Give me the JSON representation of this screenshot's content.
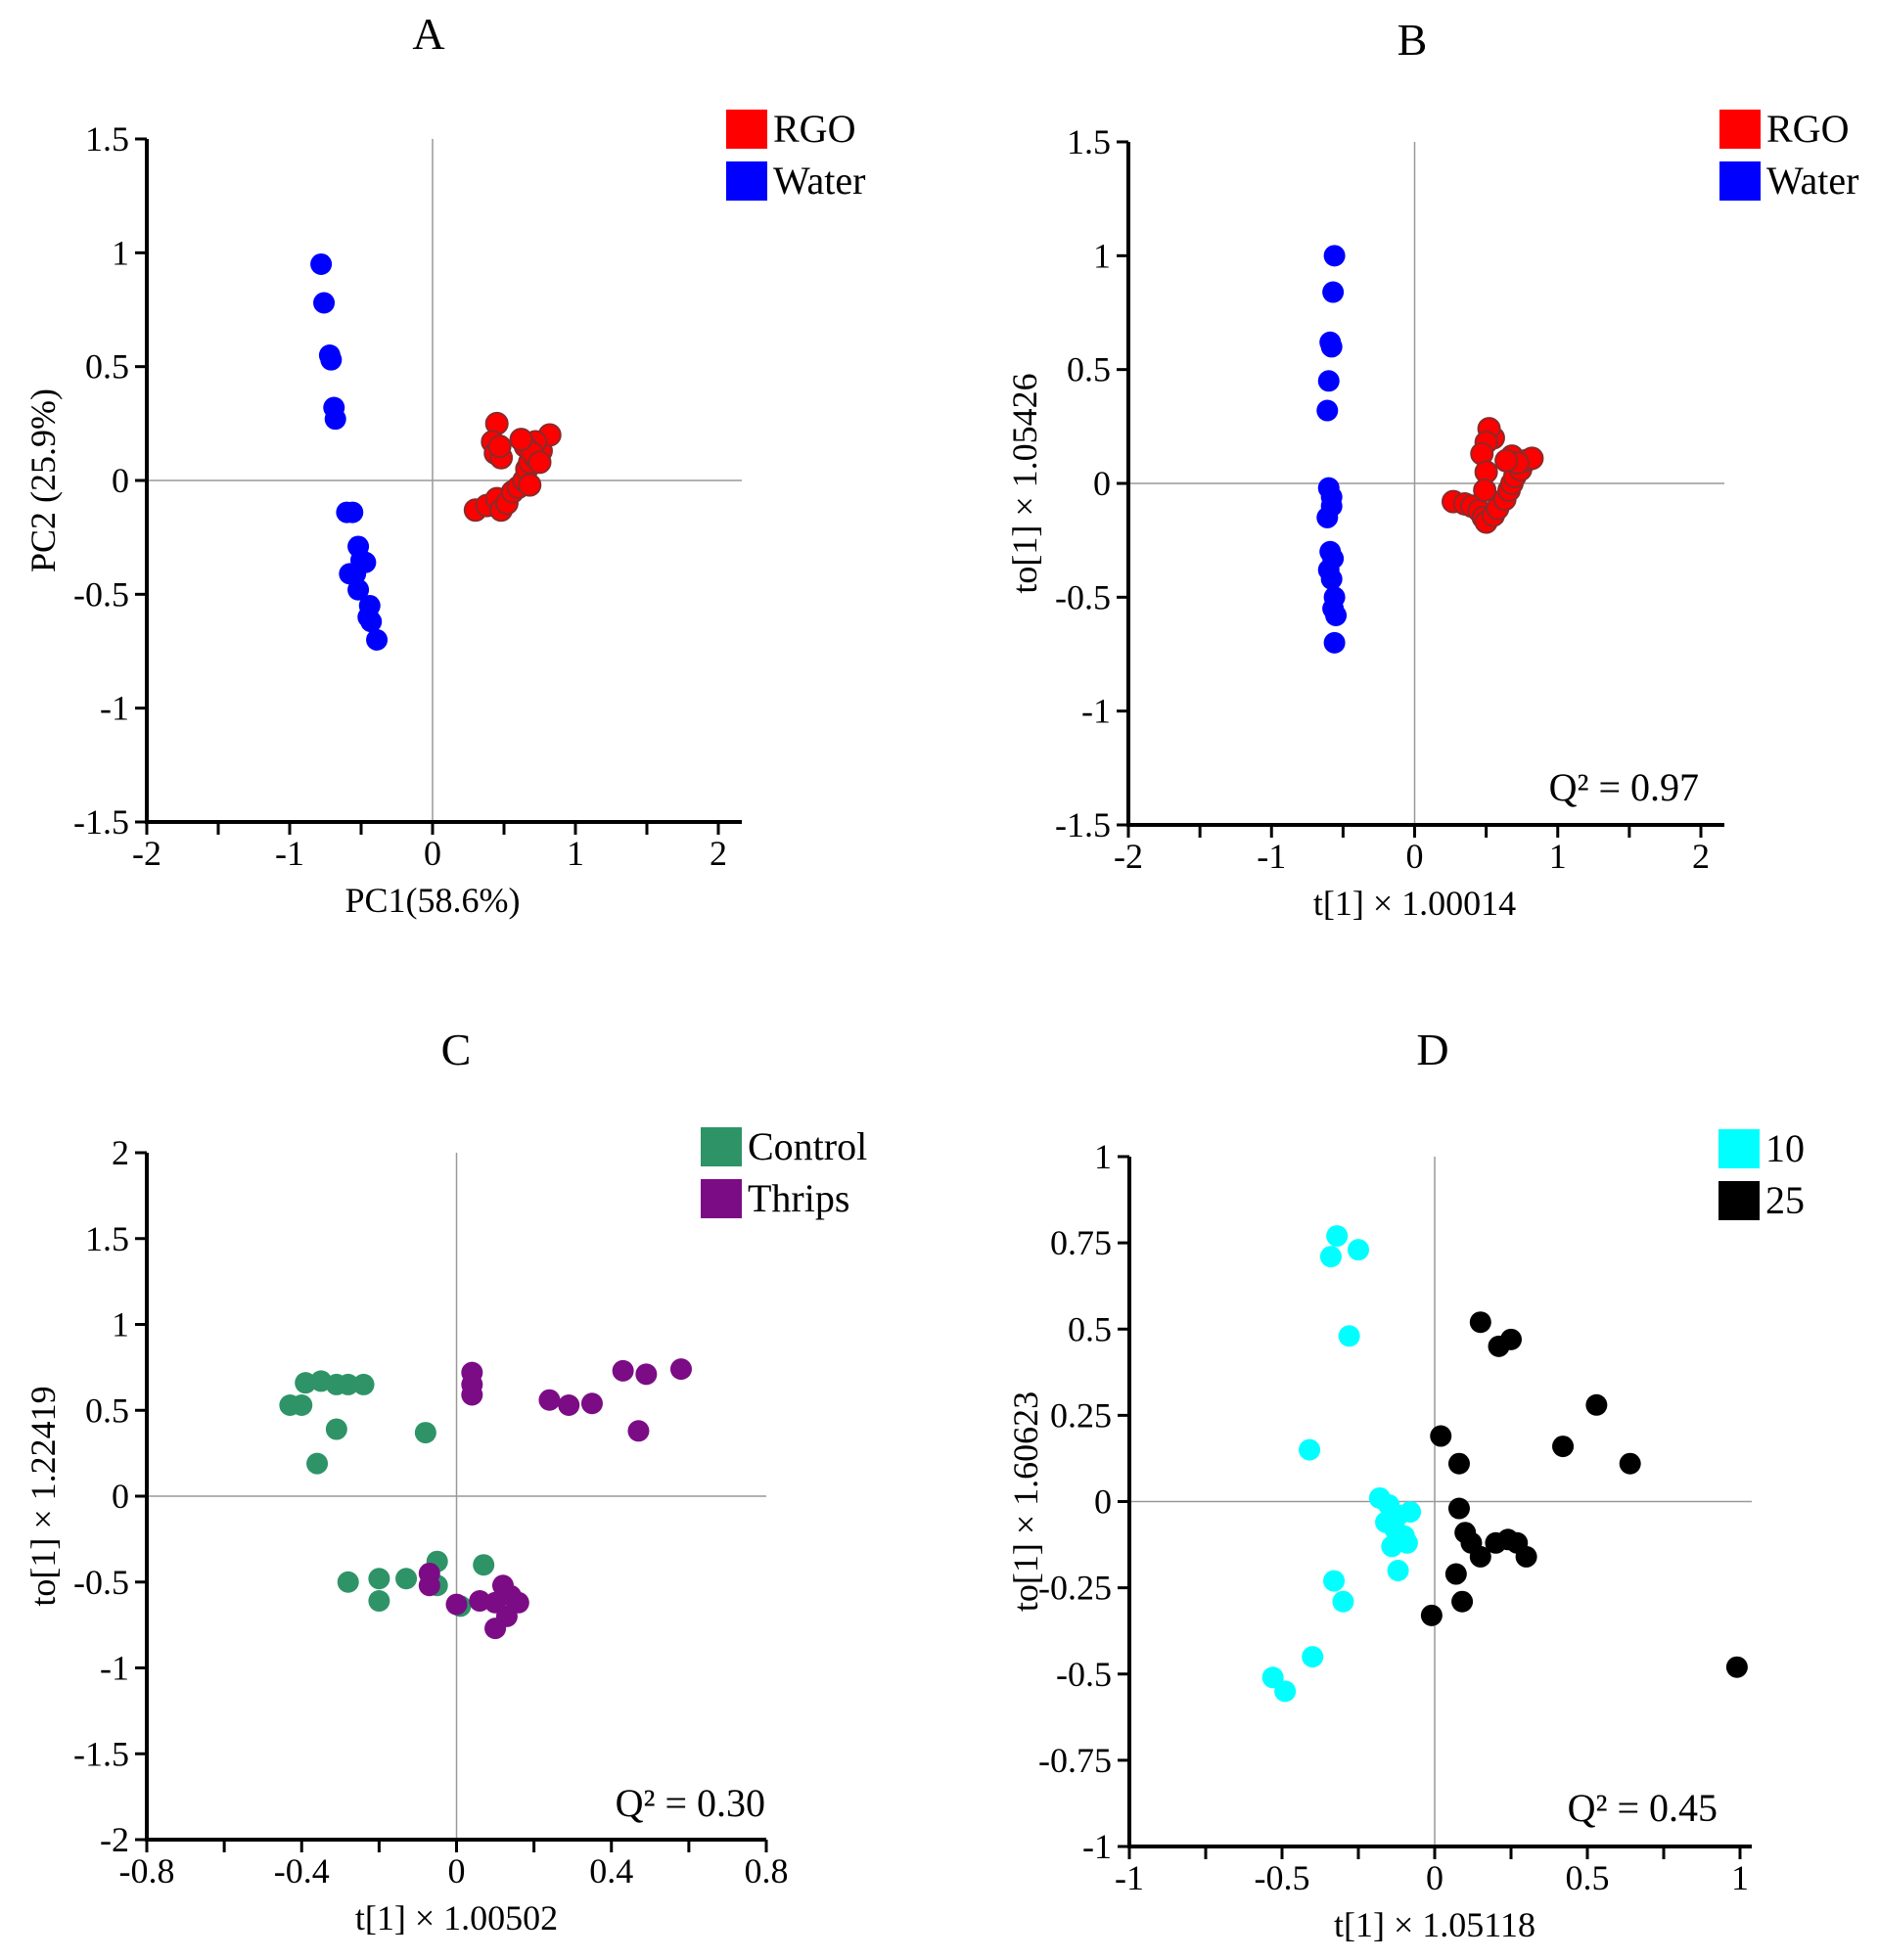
{
  "figure": {
    "description_panels": [
      "A",
      "B",
      "C",
      "D"
    ]
  },
  "chart_data": [
    {
      "type": "scatter",
      "panel_label": "A",
      "title": "",
      "xlabel": "PC1(58.6%)",
      "ylabel": "PC2 (25.9%)",
      "xlim": [
        -2,
        2
      ],
      "ylim": [
        -1.5,
        1.5
      ],
      "xticks": [
        -2,
        -1.5,
        -1,
        -0.5,
        0,
        0.5,
        1,
        1.5,
        2
      ],
      "yticks": [
        -1.5,
        -1,
        -0.5,
        0,
        0.5,
        1,
        1.5
      ],
      "xtick_labels": [
        "-2",
        "",
        "-1",
        "",
        "0",
        "",
        "1",
        "",
        "2"
      ],
      "ytick_labels": [
        "-1.5",
        "-1",
        "-0.5",
        "0",
        "0.5",
        "1",
        "1.5"
      ],
      "annotation": "",
      "legend": {
        "placement": "top-right",
        "entries": [
          {
            "label": "RGO",
            "color": "#ff0000"
          },
          {
            "label": "Water",
            "color": "#0000ff"
          }
        ]
      },
      "series": [
        {
          "name": "RGO",
          "color": "#ff0000",
          "outlined": true,
          "points": [
            [
              0.3,
              -0.13
            ],
            [
              0.38,
              -0.11
            ],
            [
              0.45,
              -0.08
            ],
            [
              0.48,
              -0.13
            ],
            [
              0.52,
              -0.1
            ],
            [
              0.56,
              -0.05
            ],
            [
              0.6,
              -0.03
            ],
            [
              0.64,
              0.0
            ],
            [
              0.66,
              0.05
            ],
            [
              0.68,
              0.08
            ],
            [
              0.72,
              0.1
            ],
            [
              0.76,
              0.13
            ],
            [
              0.82,
              0.2
            ],
            [
              0.72,
              0.17
            ],
            [
              0.65,
              0.15
            ],
            [
              0.7,
              0.12
            ],
            [
              0.75,
              0.08
            ],
            [
              0.45,
              0.25
            ],
            [
              0.42,
              0.17
            ],
            [
              0.44,
              0.12
            ],
            [
              0.48,
              0.1
            ],
            [
              0.47,
              0.15
            ],
            [
              0.68,
              -0.02
            ],
            [
              0.62,
              0.18
            ]
          ]
        },
        {
          "name": "Water",
          "color": "#0000ff",
          "outlined": false,
          "points": [
            [
              -0.78,
              0.95
            ],
            [
              -0.76,
              0.78
            ],
            [
              -0.72,
              0.55
            ],
            [
              -0.71,
              0.53
            ],
            [
              -0.69,
              0.32
            ],
            [
              -0.68,
              0.27
            ],
            [
              -0.6,
              -0.14
            ],
            [
              -0.56,
              -0.14
            ],
            [
              -0.52,
              -0.29
            ],
            [
              -0.5,
              -0.35
            ],
            [
              -0.47,
              -0.36
            ],
            [
              -0.58,
              -0.41
            ],
            [
              -0.54,
              -0.41
            ],
            [
              -0.52,
              -0.48
            ],
            [
              -0.44,
              -0.55
            ],
            [
              -0.45,
              -0.6
            ],
            [
              -0.43,
              -0.62
            ],
            [
              -0.39,
              -0.7
            ]
          ]
        }
      ]
    },
    {
      "type": "scatter",
      "panel_label": "B",
      "title": "",
      "xlabel": "t[1] × 1.00014",
      "ylabel": "to[1] × 1.05426",
      "xlim": [
        -2,
        2
      ],
      "ylim": [
        -1.5,
        1.5
      ],
      "xticks": [
        -2,
        -1.5,
        -1,
        -0.5,
        0,
        0.5,
        1,
        1.5,
        2
      ],
      "yticks": [
        -1.5,
        -1,
        -0.5,
        0,
        0.5,
        1,
        1.5
      ],
      "xtick_labels": [
        "-2",
        "",
        "-1",
        "",
        "0",
        "",
        "1",
        "",
        "2"
      ],
      "ytick_labels": [
        "-1.5",
        "-1",
        "-0.5",
        "0",
        "0.5",
        "1",
        "1.5"
      ],
      "annotation": "Q² = 0.97",
      "legend": {
        "placement": "top-right",
        "entries": [
          {
            "label": "RGO",
            "color": "#ff0000"
          },
          {
            "label": "Water",
            "color": "#0000ff"
          }
        ]
      },
      "series": [
        {
          "name": "RGO",
          "color": "#ff0000",
          "outlined": true,
          "points": [
            [
              0.27,
              -0.08
            ],
            [
              0.35,
              -0.09
            ],
            [
              0.4,
              -0.1
            ],
            [
              0.45,
              -0.12
            ],
            [
              0.48,
              -0.15
            ],
            [
              0.5,
              -0.17
            ],
            [
              0.55,
              -0.14
            ],
            [
              0.58,
              -0.11
            ],
            [
              0.63,
              -0.07
            ],
            [
              0.66,
              -0.03
            ],
            [
              0.68,
              0.0
            ],
            [
              0.7,
              0.03
            ],
            [
              0.74,
              0.06
            ],
            [
              0.78,
              0.1
            ],
            [
              0.82,
              0.11
            ],
            [
              0.68,
              0.12
            ],
            [
              0.72,
              0.09
            ],
            [
              0.55,
              0.2
            ],
            [
              0.52,
              0.24
            ],
            [
              0.5,
              0.18
            ],
            [
              0.47,
              0.13
            ],
            [
              0.5,
              0.05
            ],
            [
              0.49,
              -0.03
            ],
            [
              0.64,
              0.1
            ]
          ]
        },
        {
          "name": "Water",
          "color": "#0000ff",
          "outlined": false,
          "points": [
            [
              -0.56,
              1.0
            ],
            [
              -0.57,
              0.84
            ],
            [
              -0.59,
              0.62
            ],
            [
              -0.58,
              0.6
            ],
            [
              -0.6,
              0.45
            ],
            [
              -0.61,
              0.32
            ],
            [
              -0.6,
              -0.02
            ],
            [
              -0.58,
              -0.06
            ],
            [
              -0.61,
              -0.15
            ],
            [
              -0.58,
              -0.1
            ],
            [
              -0.59,
              -0.3
            ],
            [
              -0.57,
              -0.33
            ],
            [
              -0.6,
              -0.38
            ],
            [
              -0.58,
              -0.42
            ],
            [
              -0.56,
              -0.5
            ],
            [
              -0.57,
              -0.55
            ],
            [
              -0.55,
              -0.58
            ],
            [
              -0.56,
              -0.7
            ]
          ]
        }
      ]
    },
    {
      "type": "scatter",
      "panel_label": "C",
      "title": "",
      "xlabel": "t[1] × 1.00502",
      "ylabel": "to[1] × 1.22419",
      "xlim": [
        -0.8,
        0.8
      ],
      "ylim": [
        -2,
        2
      ],
      "xticks": [
        -0.8,
        -0.6,
        -0.4,
        -0.2,
        0,
        0.2,
        0.4,
        0.6,
        0.8
      ],
      "yticks": [
        -2,
        -1.5,
        -1,
        -0.5,
        0,
        0.5,
        1,
        1.5,
        2
      ],
      "xtick_labels": [
        "-0.8",
        "",
        "-0.4",
        "",
        "0",
        "",
        "0.4",
        "",
        "0.8"
      ],
      "ytick_labels": [
        "-2",
        "-1.5",
        "-1",
        "-0.5",
        "0",
        "0.5",
        "1",
        "1.5",
        "2"
      ],
      "annotation": "Q² = 0.30",
      "legend": {
        "placement": "top-right",
        "entries": [
          {
            "label": "Control",
            "color": "#2e9467"
          },
          {
            "label": "Thrips",
            "color": "#7b0c85"
          }
        ]
      },
      "series": [
        {
          "name": "Control",
          "color": "#2e9467",
          "outlined": false,
          "points": [
            [
              -0.43,
              0.53
            ],
            [
              -0.4,
              0.53
            ],
            [
              -0.39,
              0.66
            ],
            [
              -0.35,
              0.67
            ],
            [
              -0.31,
              0.65
            ],
            [
              -0.28,
              0.65
            ],
            [
              -0.24,
              0.65
            ],
            [
              -0.31,
              0.39
            ],
            [
              -0.36,
              0.19
            ],
            [
              -0.08,
              0.37
            ],
            [
              -0.28,
              -0.5
            ],
            [
              -0.2,
              -0.48
            ],
            [
              -0.2,
              -0.61
            ],
            [
              -0.13,
              -0.48
            ],
            [
              -0.05,
              -0.38
            ],
            [
              -0.05,
              -0.52
            ],
            [
              0.07,
              -0.4
            ],
            [
              0.01,
              -0.64
            ]
          ]
        },
        {
          "name": "Thrips",
          "color": "#7b0c85",
          "outlined": false,
          "points": [
            [
              0.04,
              0.72
            ],
            [
              0.04,
              0.65
            ],
            [
              0.04,
              0.59
            ],
            [
              0.24,
              0.56
            ],
            [
              0.29,
              0.53
            ],
            [
              0.35,
              0.54
            ],
            [
              0.43,
              0.73
            ],
            [
              0.49,
              0.71
            ],
            [
              0.58,
              0.74
            ],
            [
              0.47,
              0.38
            ],
            [
              -0.07,
              -0.45
            ],
            [
              -0.07,
              -0.52
            ],
            [
              0.0,
              -0.63
            ],
            [
              0.06,
              -0.61
            ],
            [
              0.12,
              -0.52
            ],
            [
              0.1,
              -0.62
            ],
            [
              0.14,
              -0.58
            ],
            [
              0.16,
              -0.62
            ],
            [
              0.13,
              -0.7
            ],
            [
              0.1,
              -0.77
            ]
          ]
        }
      ]
    },
    {
      "type": "scatter",
      "panel_label": "D",
      "title": "",
      "xlabel": "t[1] × 1.05118",
      "ylabel": "to[1] × 1.60623",
      "xlim": [
        -1,
        1
      ],
      "ylim": [
        -1,
        1
      ],
      "xticks": [
        -1,
        -0.75,
        -0.5,
        -0.25,
        0,
        0.25,
        0.5,
        0.75,
        1
      ],
      "yticks": [
        -1,
        -0.75,
        -0.5,
        -0.25,
        0,
        0.25,
        0.5,
        0.75,
        1
      ],
      "xtick_labels": [
        "-1",
        "",
        "-0.5",
        "",
        "0",
        "",
        "0.5",
        "",
        "1"
      ],
      "ytick_labels": [
        "-1",
        "-0.75",
        "-0.5",
        "-0.25",
        "0",
        "0.25",
        "0.5",
        "0.75",
        "1"
      ],
      "annotation": "Q² = 0.45",
      "legend": {
        "placement": "top-right",
        "entries": [
          {
            "label": "10",
            "color": "#00ffff"
          },
          {
            "label": "25",
            "color": "#000000"
          }
        ]
      },
      "series": [
        {
          "name": "10",
          "color": "#00ffff",
          "outlined": false,
          "points": [
            [
              -0.32,
              0.77
            ],
            [
              -0.34,
              0.71
            ],
            [
              -0.25,
              0.73
            ],
            [
              -0.28,
              0.48
            ],
            [
              -0.41,
              0.15
            ],
            [
              -0.18,
              0.01
            ],
            [
              -0.15,
              -0.01
            ],
            [
              -0.12,
              -0.04
            ],
            [
              -0.08,
              -0.03
            ],
            [
              -0.16,
              -0.06
            ],
            [
              -0.13,
              -0.08
            ],
            [
              -0.1,
              -0.1
            ],
            [
              -0.14,
              -0.13
            ],
            [
              -0.09,
              -0.12
            ],
            [
              -0.12,
              -0.2
            ],
            [
              -0.33,
              -0.23
            ],
            [
              -0.3,
              -0.29
            ],
            [
              -0.4,
              -0.45
            ],
            [
              -0.53,
              -0.51
            ],
            [
              -0.49,
              -0.55
            ]
          ]
        },
        {
          "name": "25",
          "color": "#000000",
          "outlined": false,
          "points": [
            [
              0.15,
              0.52
            ],
            [
              0.21,
              0.45
            ],
            [
              0.25,
              0.47
            ],
            [
              0.53,
              0.28
            ],
            [
              0.42,
              0.16
            ],
            [
              0.64,
              0.11
            ],
            [
              0.02,
              0.19
            ],
            [
              0.08,
              0.11
            ],
            [
              0.08,
              -0.02
            ],
            [
              0.1,
              -0.09
            ],
            [
              0.12,
              -0.12
            ],
            [
              0.15,
              -0.16
            ],
            [
              0.2,
              -0.12
            ],
            [
              0.24,
              -0.11
            ],
            [
              0.27,
              -0.12
            ],
            [
              0.3,
              -0.16
            ],
            [
              0.07,
              -0.21
            ],
            [
              0.09,
              -0.29
            ],
            [
              -0.01,
              -0.33
            ],
            [
              0.99,
              -0.48
            ]
          ]
        }
      ]
    }
  ]
}
